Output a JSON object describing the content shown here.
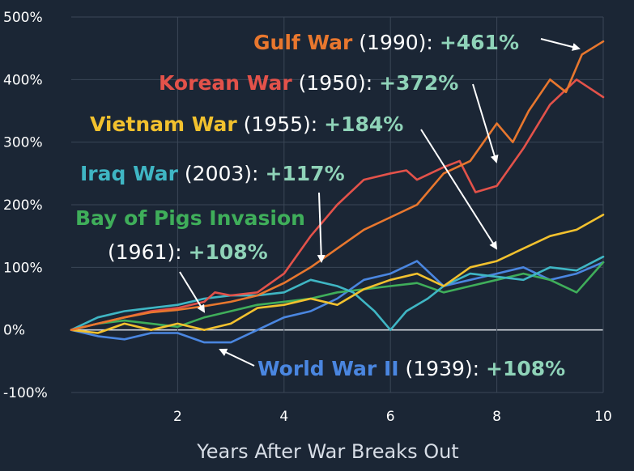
{
  "chart_data": {
    "type": "line",
    "xlabel": "Years After War Breaks Out",
    "ylabel": "",
    "xlim": [
      0,
      10
    ],
    "ylim": [
      -100,
      500
    ],
    "x_ticks": [
      "2",
      "4",
      "6",
      "8",
      "10"
    ],
    "y_ticks": [
      "500%",
      "400%",
      "300%",
      "200%",
      "100%",
      "0%",
      "-100%"
    ],
    "grid": true,
    "series": [
      {
        "name": "Gulf War",
        "color": "#e8772e",
        "points": [
          [
            0,
            0
          ],
          [
            0.5,
            10
          ],
          [
            1,
            20
          ],
          [
            1.5,
            28
          ],
          [
            2,
            32
          ],
          [
            2.5,
            38
          ],
          [
            3,
            45
          ],
          [
            3.5,
            55
          ],
          [
            4,
            75
          ],
          [
            4.5,
            100
          ],
          [
            5,
            130
          ],
          [
            5.5,
            160
          ],
          [
            6,
            180
          ],
          [
            6.5,
            200
          ],
          [
            7,
            250
          ],
          [
            7.5,
            270
          ],
          [
            8,
            330
          ],
          [
            8.3,
            300
          ],
          [
            8.6,
            350
          ],
          [
            9,
            400
          ],
          [
            9.3,
            380
          ],
          [
            9.6,
            440
          ],
          [
            10,
            461
          ]
        ],
        "label": {
          "name": "Gulf War",
          "year": " (1990): ",
          "value": "+461%"
        }
      },
      {
        "name": "Korean War",
        "color": "#e3524a",
        "points": [
          [
            0,
            0
          ],
          [
            0.5,
            10
          ],
          [
            1,
            20
          ],
          [
            1.5,
            30
          ],
          [
            2,
            35
          ],
          [
            2.5,
            45
          ],
          [
            2.7,
            60
          ],
          [
            3,
            55
          ],
          [
            3.5,
            60
          ],
          [
            4,
            90
          ],
          [
            4.5,
            150
          ],
          [
            5,
            200
          ],
          [
            5.5,
            240
          ],
          [
            6,
            250
          ],
          [
            6.3,
            255
          ],
          [
            6.5,
            240
          ],
          [
            7,
            260
          ],
          [
            7.3,
            270
          ],
          [
            7.6,
            220
          ],
          [
            8,
            230
          ],
          [
            8.5,
            290
          ],
          [
            9,
            360
          ],
          [
            9.5,
            400
          ],
          [
            10,
            372
          ]
        ],
        "label": {
          "name": "Korean War",
          "year": " (1950): ",
          "value": "+372%"
        }
      },
      {
        "name": "Vietnam War",
        "color": "#f2c12e",
        "points": [
          [
            0,
            0
          ],
          [
            0.5,
            -5
          ],
          [
            1,
            10
          ],
          [
            1.5,
            0
          ],
          [
            2,
            10
          ],
          [
            2.5,
            0
          ],
          [
            3,
            10
          ],
          [
            3.5,
            35
          ],
          [
            4,
            40
          ],
          [
            4.5,
            50
          ],
          [
            5,
            40
          ],
          [
            5.5,
            65
          ],
          [
            6,
            80
          ],
          [
            6.5,
            90
          ],
          [
            7,
            70
          ],
          [
            7.5,
            100
          ],
          [
            8,
            110
          ],
          [
            8.5,
            130
          ],
          [
            9,
            150
          ],
          [
            9.5,
            160
          ],
          [
            10,
            184
          ]
        ],
        "label": {
          "name": "Vietnam War",
          "year": " (1955): ",
          "value": "+184%"
        }
      },
      {
        "name": "Iraq War",
        "color": "#3fb6c4",
        "points": [
          [
            0,
            0
          ],
          [
            0.5,
            20
          ],
          [
            1,
            30
          ],
          [
            1.5,
            35
          ],
          [
            2,
            40
          ],
          [
            2.5,
            50
          ],
          [
            3,
            55
          ],
          [
            3.5,
            55
          ],
          [
            4,
            60
          ],
          [
            4.5,
            80
          ],
          [
            5,
            70
          ],
          [
            5.3,
            60
          ],
          [
            5.7,
            30
          ],
          [
            6,
            0
          ],
          [
            6.3,
            30
          ],
          [
            6.7,
            50
          ],
          [
            7,
            70
          ],
          [
            7.5,
            90
          ],
          [
            8,
            85
          ],
          [
            8.5,
            80
          ],
          [
            9,
            100
          ],
          [
            9.5,
            95
          ],
          [
            10,
            117
          ]
        ],
        "label": {
          "name": "Iraq War",
          "year": " (2003): ",
          "value": "+117%"
        }
      },
      {
        "name": "Bay of Pigs Invasion",
        "color": "#3fae5a",
        "points": [
          [
            0,
            0
          ],
          [
            0.5,
            10
          ],
          [
            1,
            15
          ],
          [
            1.5,
            10
          ],
          [
            2,
            5
          ],
          [
            2.5,
            20
          ],
          [
            3,
            30
          ],
          [
            3.5,
            40
          ],
          [
            4,
            45
          ],
          [
            4.5,
            50
          ],
          [
            5,
            60
          ],
          [
            5.5,
            65
          ],
          [
            6,
            70
          ],
          [
            6.5,
            75
          ],
          [
            7,
            60
          ],
          [
            7.5,
            70
          ],
          [
            8,
            80
          ],
          [
            8.5,
            90
          ],
          [
            9,
            80
          ],
          [
            9.5,
            60
          ],
          [
            10,
            108
          ]
        ],
        "label": {
          "name": "Bay of Pigs Invasion",
          "year": "(1961): ",
          "value": "+108%"
        }
      },
      {
        "name": "World War II",
        "color": "#4a86e0",
        "points": [
          [
            0,
            0
          ],
          [
            0.5,
            -10
          ],
          [
            1,
            -15
          ],
          [
            1.5,
            -5
          ],
          [
            2,
            -5
          ],
          [
            2.5,
            -20
          ],
          [
            3,
            -20
          ],
          [
            3.5,
            0
          ],
          [
            4,
            20
          ],
          [
            4.5,
            30
          ],
          [
            5,
            50
          ],
          [
            5.5,
            80
          ],
          [
            6,
            90
          ],
          [
            6.5,
            110
          ],
          [
            7,
            70
          ],
          [
            7.5,
            80
          ],
          [
            8,
            90
          ],
          [
            8.5,
            100
          ],
          [
            9,
            80
          ],
          [
            9.5,
            90
          ],
          [
            10,
            108
          ]
        ],
        "label": {
          "name": "World War II",
          "year": " (1939): ",
          "value": "+108%"
        }
      }
    ]
  }
}
